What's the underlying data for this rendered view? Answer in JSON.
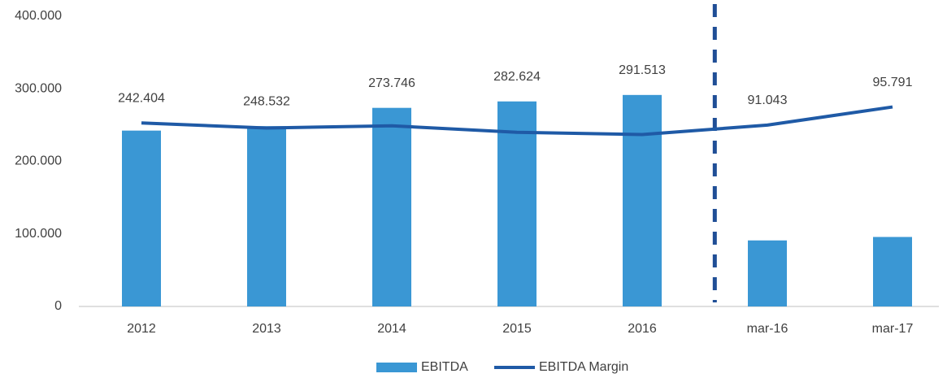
{
  "chart_data": {
    "type": "bar",
    "categories": [
      "2012",
      "2013",
      "2014",
      "2015",
      "2016",
      "mar-16",
      "mar-17"
    ],
    "series": [
      {
        "name": "EBITDA",
        "type": "bar",
        "color": "#3a97d4",
        "values": [
          242404,
          248532,
          273746,
          282624,
          291513,
          91043,
          95791
        ],
        "value_labels": [
          "242.404",
          "248.532",
          "273.746",
          "282.624",
          "291.513",
          "91.043",
          "95.791"
        ]
      },
      {
        "name": "EBITDA Margin",
        "type": "line",
        "color": "#1f5aa6",
        "values": [
          253000,
          246000,
          249000,
          240000,
          237000,
          250000,
          275000
        ]
      }
    ],
    "ylim": [
      0,
      400000
    ],
    "yticks": [
      {
        "value": 0,
        "label": "0"
      },
      {
        "value": 100000,
        "label": "100.000"
      },
      {
        "value": 200000,
        "label": "200.000"
      },
      {
        "value": 300000,
        "label": "300.000"
      },
      {
        "value": 400000,
        "label": "400.000"
      }
    ],
    "legend": "bottom"
  }
}
